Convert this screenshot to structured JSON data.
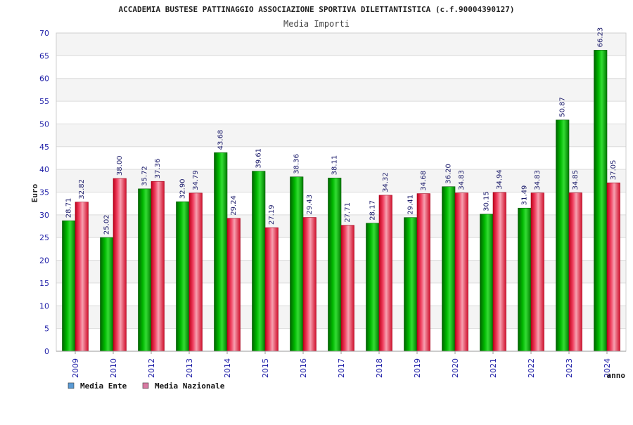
{
  "chart_data": {
    "type": "bar",
    "title": "ACCADEMIA BUSTESE PATTINAGGIO ASSOCIAZIONE SPORTIVA DILETTANTISTICA (c.f.90004390127)",
    "subtitle": "Media Importi",
    "xlabel": "anno",
    "ylabel": "Euro",
    "ylim": [
      0,
      70
    ],
    "y_ticks": [
      0,
      5,
      10,
      15,
      20,
      25,
      30,
      35,
      40,
      45,
      50,
      55,
      60,
      65,
      70
    ],
    "grid": true,
    "legend_position": "bottom-left",
    "categories": [
      "2009",
      "2010",
      "2012",
      "2013",
      "2014",
      "2015",
      "2016",
      "2017",
      "2018",
      "2019",
      "2020",
      "2021",
      "2022",
      "2023",
      "2024"
    ],
    "series": [
      {
        "name": "Media Ente",
        "color": "#00aa00",
        "legend_color": "#5b9bd5",
        "values": [
          28.71,
          25.02,
          35.72,
          32.9,
          43.68,
          39.61,
          38.36,
          38.11,
          28.17,
          29.41,
          36.2,
          30.15,
          31.49,
          50.87,
          66.23
        ],
        "labels": [
          "28.71",
          "25.02",
          "35.72",
          "32.90",
          "43.68",
          "39.61",
          "38.36",
          "38.11",
          "28.17",
          "29.41",
          "36.20",
          "30.15",
          "31.49",
          "50.87",
          "66.23"
        ]
      },
      {
        "name": "Media Nazionale",
        "color": "#e8102e",
        "legend_color": "#d97aa3",
        "values": [
          32.82,
          38.0,
          37.36,
          34.79,
          29.24,
          27.19,
          29.43,
          27.71,
          34.32,
          34.68,
          34.83,
          34.94,
          34.83,
          34.85,
          37.05
        ],
        "labels": [
          "32.82",
          "38.00",
          "37.36",
          "34.79",
          "29.24",
          "27.19",
          "29.43",
          "27.71",
          "34.32",
          "34.68",
          "34.83",
          "34.94",
          "34.83",
          "34.85",
          "37.05"
        ]
      }
    ]
  }
}
